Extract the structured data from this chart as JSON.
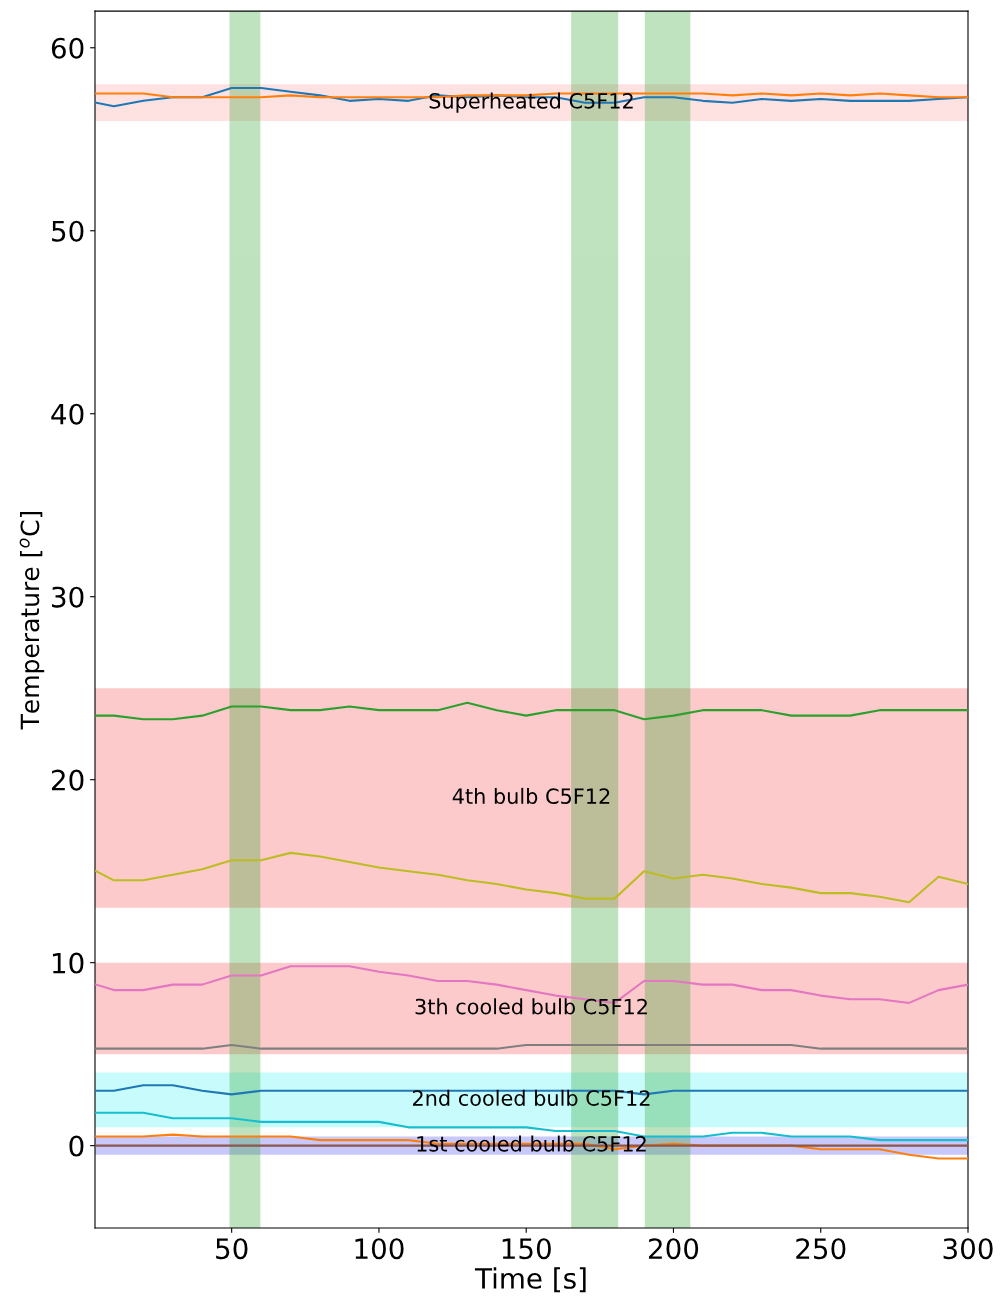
{
  "chart_data": {
    "type": "line",
    "xlabel": "Time [s]",
    "ylabel": "Temperature [$^{o}$C]",
    "x": [
      4,
      10,
      20,
      30,
      40,
      50,
      60,
      70,
      80,
      90,
      100,
      110,
      120,
      130,
      140,
      150,
      160,
      170,
      180,
      190,
      200,
      210,
      220,
      230,
      240,
      250,
      260,
      270,
      280,
      290,
      300
    ],
    "series": [
      {
        "color": "#1f77b4",
        "values": [
          57.0,
          56.8,
          57.1,
          57.3,
          57.3,
          57.8,
          57.8,
          57.6,
          57.4,
          57.1,
          57.2,
          57.1,
          57.4,
          57.3,
          57.4,
          57.3,
          57.3,
          57.0,
          57.0,
          57.3,
          57.3,
          57.1,
          57.0,
          57.2,
          57.1,
          57.2,
          57.1,
          57.1,
          57.1,
          57.2,
          57.3
        ]
      },
      {
        "color": "#ff7f0e",
        "values": [
          57.5,
          57.5,
          57.5,
          57.3,
          57.3,
          57.3,
          57.3,
          57.4,
          57.3,
          57.3,
          57.3,
          57.3,
          57.3,
          57.4,
          57.4,
          57.4,
          57.5,
          57.5,
          57.5,
          57.5,
          57.5,
          57.5,
          57.4,
          57.5,
          57.4,
          57.5,
          57.4,
          57.5,
          57.4,
          57.3,
          57.3
        ]
      },
      {
        "color": "#2ca02c",
        "values": [
          23.5,
          23.5,
          23.3,
          23.3,
          23.5,
          24.0,
          24.0,
          23.8,
          23.8,
          24.0,
          23.8,
          23.8,
          23.8,
          24.2,
          23.8,
          23.5,
          23.8,
          23.8,
          23.8,
          23.3,
          23.5,
          23.8,
          23.8,
          23.8,
          23.5,
          23.5,
          23.5,
          23.8,
          23.8,
          23.8,
          23.8
        ]
      },
      {
        "color": "#bcbd22",
        "values": [
          15.0,
          14.5,
          14.5,
          14.8,
          15.1,
          15.6,
          15.6,
          16.0,
          15.8,
          15.5,
          15.2,
          15.0,
          14.8,
          14.5,
          14.3,
          14.0,
          13.8,
          13.5,
          13.5,
          15.0,
          14.6,
          14.8,
          14.6,
          14.3,
          14.1,
          13.8,
          13.8,
          13.6,
          13.3,
          14.7,
          14.3
        ]
      },
      {
        "color": "#e377c2",
        "values": [
          8.8,
          8.5,
          8.5,
          8.8,
          8.8,
          9.3,
          9.3,
          9.8,
          9.8,
          9.8,
          9.5,
          9.3,
          9.0,
          9.0,
          8.8,
          8.5,
          8.2,
          8.0,
          7.8,
          9.0,
          9.0,
          8.8,
          8.8,
          8.5,
          8.5,
          8.2,
          8.0,
          8.0,
          7.8,
          8.5,
          8.8
        ]
      },
      {
        "color": "#7f7f7f",
        "values": [
          5.3,
          5.3,
          5.3,
          5.3,
          5.3,
          5.5,
          5.3,
          5.3,
          5.3,
          5.3,
          5.3,
          5.3,
          5.3,
          5.3,
          5.3,
          5.5,
          5.5,
          5.5,
          5.5,
          5.5,
          5.5,
          5.5,
          5.5,
          5.5,
          5.5,
          5.3,
          5.3,
          5.3,
          5.3,
          5.3,
          5.3
        ]
      },
      {
        "color": "#1f77b4",
        "values": [
          3.0,
          3.0,
          3.3,
          3.3,
          3.0,
          2.8,
          3.0,
          3.0,
          3.0,
          3.0,
          3.0,
          3.0,
          3.0,
          3.0,
          3.0,
          3.0,
          3.0,
          3.0,
          3.0,
          2.8,
          3.0,
          3.0,
          3.0,
          3.0,
          3.0,
          3.0,
          3.0,
          3.0,
          3.0,
          3.0,
          3.0
        ]
      },
      {
        "color": "#17becf",
        "values": [
          1.8,
          1.8,
          1.8,
          1.5,
          1.5,
          1.5,
          1.3,
          1.3,
          1.3,
          1.3,
          1.3,
          1.0,
          1.0,
          1.0,
          1.0,
          1.0,
          0.8,
          0.8,
          0.8,
          0.5,
          0.5,
          0.5,
          0.7,
          0.7,
          0.5,
          0.5,
          0.5,
          0.3,
          0.3,
          0.3,
          0.3
        ]
      },
      {
        "color": "#ff7f0e",
        "values": [
          0.5,
          0.5,
          0.5,
          0.6,
          0.5,
          0.5,
          0.5,
          0.5,
          0.3,
          0.3,
          0.3,
          0.3,
          0.1,
          0.1,
          0.1,
          0.1,
          0.1,
          0.1,
          -0.2,
          0.0,
          0.1,
          0.0,
          0.0,
          0.0,
          0.0,
          -0.2,
          -0.2,
          -0.2,
          -0.5,
          -0.7,
          -0.7
        ]
      },
      {
        "color": "#8c564b",
        "values": [
          0.0,
          0.0,
          0.0,
          0.0,
          0.0,
          0.0,
          0.0,
          0.0,
          0.0,
          0.0,
          0.0,
          0.0,
          0.0,
          0.0,
          0.0,
          0.0,
          0.0,
          0.0,
          0.0,
          0.0,
          0.0,
          0.0,
          0.0,
          0.0,
          0.0,
          0.0,
          0.0,
          0.0,
          0.0,
          0.0,
          0.0
        ]
      }
    ],
    "bands": [
      {
        "axis": "y",
        "from": 56,
        "to": 58,
        "label": "Superheated C5F12",
        "color": "#fee2e2"
      },
      {
        "axis": "y",
        "from": 13,
        "to": 25,
        "label": "4th bulb C5F12",
        "color": "#fccaca"
      },
      {
        "axis": "y",
        "from": 5,
        "to": 10,
        "label": "3th cooled bulb C5F12",
        "color": "#fccaca"
      },
      {
        "axis": "y",
        "from": 1,
        "to": 4,
        "label": "2nd cooled bulb C5F12",
        "color": "#c8fcfc"
      },
      {
        "axis": "y",
        "from": -0.5,
        "to": 0.5,
        "label": "1st cooled bulb C5F12",
        "color": "#c8c8fa"
      },
      {
        "axis": "x",
        "from": 49.5,
        "to": 59.5,
        "color": "#2ca02c"
      },
      {
        "axis": "x",
        "from": 165.5,
        "to": 181,
        "color": "#2ca02c"
      },
      {
        "axis": "x",
        "from": 190.5,
        "to": 205.5,
        "color": "#2ca02c"
      }
    ],
    "xlim": [
      3.6,
      300
    ],
    "ylim": [
      -4.5,
      62
    ],
    "xticks": [
      50,
      100,
      150,
      200,
      250,
      300
    ],
    "yticks": [
      0,
      10,
      20,
      30,
      40,
      50,
      60
    ],
    "grid": false,
    "legend": false,
    "marker": "none",
    "line_style": "solid"
  }
}
